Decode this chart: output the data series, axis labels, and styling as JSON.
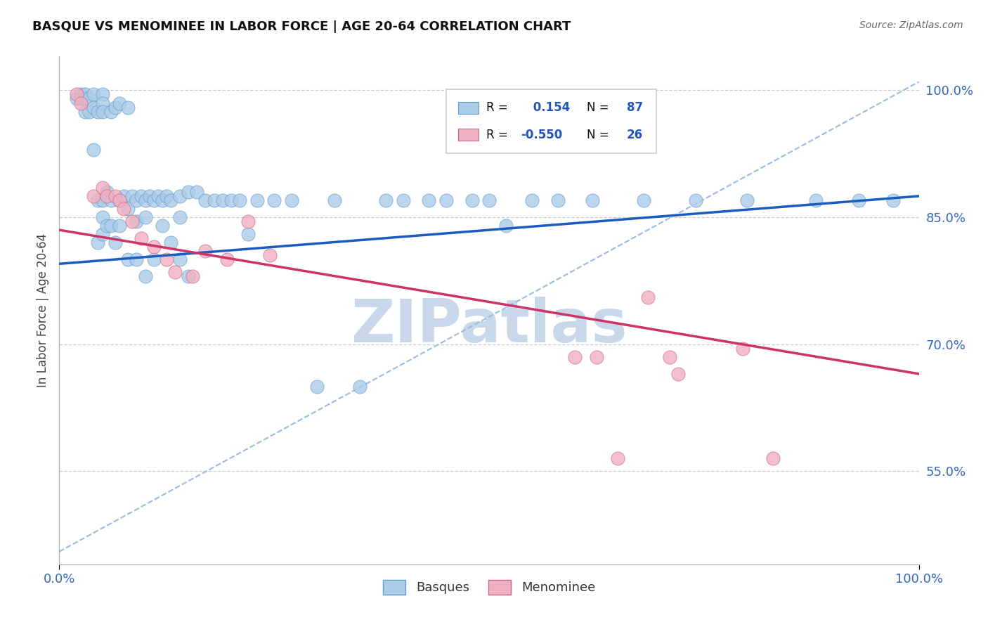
{
  "title": "BASQUE VS MENOMINEE IN LABOR FORCE | AGE 20-64 CORRELATION CHART",
  "source_text": "Source: ZipAtlas.com",
  "ylabel": "In Labor Force | Age 20-64",
  "legend_label1": "Basques",
  "legend_label2": "Menominee",
  "xlim": [
    0.0,
    1.0
  ],
  "ylim": [
    0.44,
    1.04
  ],
  "xtick_labels": [
    "0.0%",
    "100.0%"
  ],
  "xtick_values": [
    0.0,
    1.0
  ],
  "ytick_labels": [
    "55.0%",
    "70.0%",
    "85.0%",
    "100.0%"
  ],
  "ytick_values": [
    0.55,
    0.7,
    0.85,
    1.0
  ],
  "R1": 0.154,
  "N1": 87,
  "R2": -0.55,
  "N2": 26,
  "basque_color": "#aacce8",
  "basque_edge_color": "#6699cc",
  "menominee_color": "#f0b0c0",
  "menominee_edge_color": "#cc6688",
  "blue_line_color": "#1a5cbf",
  "pink_line_color": "#cc3366",
  "dashed_line_color": "#99bbdd",
  "watermark_color": "#c8d8ea",
  "grid_color": "#cccccc",
  "blue_line_x0": 0.0,
  "blue_line_y0": 0.795,
  "blue_line_x1": 1.0,
  "blue_line_y1": 0.875,
  "pink_line_x0": 0.0,
  "pink_line_y0": 0.835,
  "pink_line_x1": 1.0,
  "pink_line_y1": 0.665,
  "dash_line_x0": 0.0,
  "dash_line_y0": 0.455,
  "dash_line_x1": 1.0,
  "dash_line_y1": 1.01,
  "basque_x": [
    0.02,
    0.025,
    0.025,
    0.03,
    0.03,
    0.03,
    0.035,
    0.035,
    0.04,
    0.04,
    0.04,
    0.045,
    0.045,
    0.045,
    0.05,
    0.05,
    0.05,
    0.05,
    0.05,
    0.05,
    0.055,
    0.055,
    0.06,
    0.06,
    0.06,
    0.065,
    0.065,
    0.07,
    0.07,
    0.07,
    0.075,
    0.08,
    0.08,
    0.08,
    0.085,
    0.09,
    0.09,
    0.09,
    0.095,
    0.1,
    0.1,
    0.1,
    0.105,
    0.11,
    0.11,
    0.115,
    0.12,
    0.12,
    0.125,
    0.13,
    0.13,
    0.14,
    0.14,
    0.14,
    0.15,
    0.15,
    0.16,
    0.17,
    0.18,
    0.19,
    0.2,
    0.21,
    0.22,
    0.23,
    0.25,
    0.27,
    0.3,
    0.32,
    0.35,
    0.38,
    0.4,
    0.43,
    0.45,
    0.48,
    0.5,
    0.52,
    0.55,
    0.58,
    0.62,
    0.68,
    0.74,
    0.8,
    0.88,
    0.93,
    0.97
  ],
  "basque_y": [
    0.99,
    0.995,
    0.99,
    0.995,
    0.99,
    0.975,
    0.99,
    0.975,
    0.995,
    0.98,
    0.93,
    0.975,
    0.87,
    0.82,
    0.995,
    0.985,
    0.975,
    0.87,
    0.85,
    0.83,
    0.88,
    0.84,
    0.975,
    0.87,
    0.84,
    0.98,
    0.82,
    0.985,
    0.87,
    0.84,
    0.875,
    0.98,
    0.86,
    0.8,
    0.875,
    0.87,
    0.845,
    0.8,
    0.875,
    0.87,
    0.85,
    0.78,
    0.875,
    0.87,
    0.8,
    0.875,
    0.87,
    0.84,
    0.875,
    0.87,
    0.82,
    0.875,
    0.85,
    0.8,
    0.88,
    0.78,
    0.88,
    0.87,
    0.87,
    0.87,
    0.87,
    0.87,
    0.83,
    0.87,
    0.87,
    0.87,
    0.65,
    0.87,
    0.65,
    0.87,
    0.87,
    0.87,
    0.87,
    0.87,
    0.87,
    0.84,
    0.87,
    0.87,
    0.87,
    0.87,
    0.87,
    0.87,
    0.87,
    0.87,
    0.87
  ],
  "menominee_x": [
    0.02,
    0.025,
    0.04,
    0.05,
    0.055,
    0.065,
    0.07,
    0.075,
    0.085,
    0.095,
    0.11,
    0.125,
    0.135,
    0.155,
    0.17,
    0.195,
    0.22,
    0.245,
    0.6,
    0.625,
    0.65,
    0.685,
    0.71,
    0.72,
    0.795,
    0.83
  ],
  "menominee_y": [
    0.995,
    0.985,
    0.875,
    0.885,
    0.875,
    0.875,
    0.87,
    0.86,
    0.845,
    0.825,
    0.815,
    0.8,
    0.785,
    0.78,
    0.81,
    0.8,
    0.845,
    0.805,
    0.685,
    0.685,
    0.565,
    0.755,
    0.685,
    0.665,
    0.695,
    0.565
  ]
}
